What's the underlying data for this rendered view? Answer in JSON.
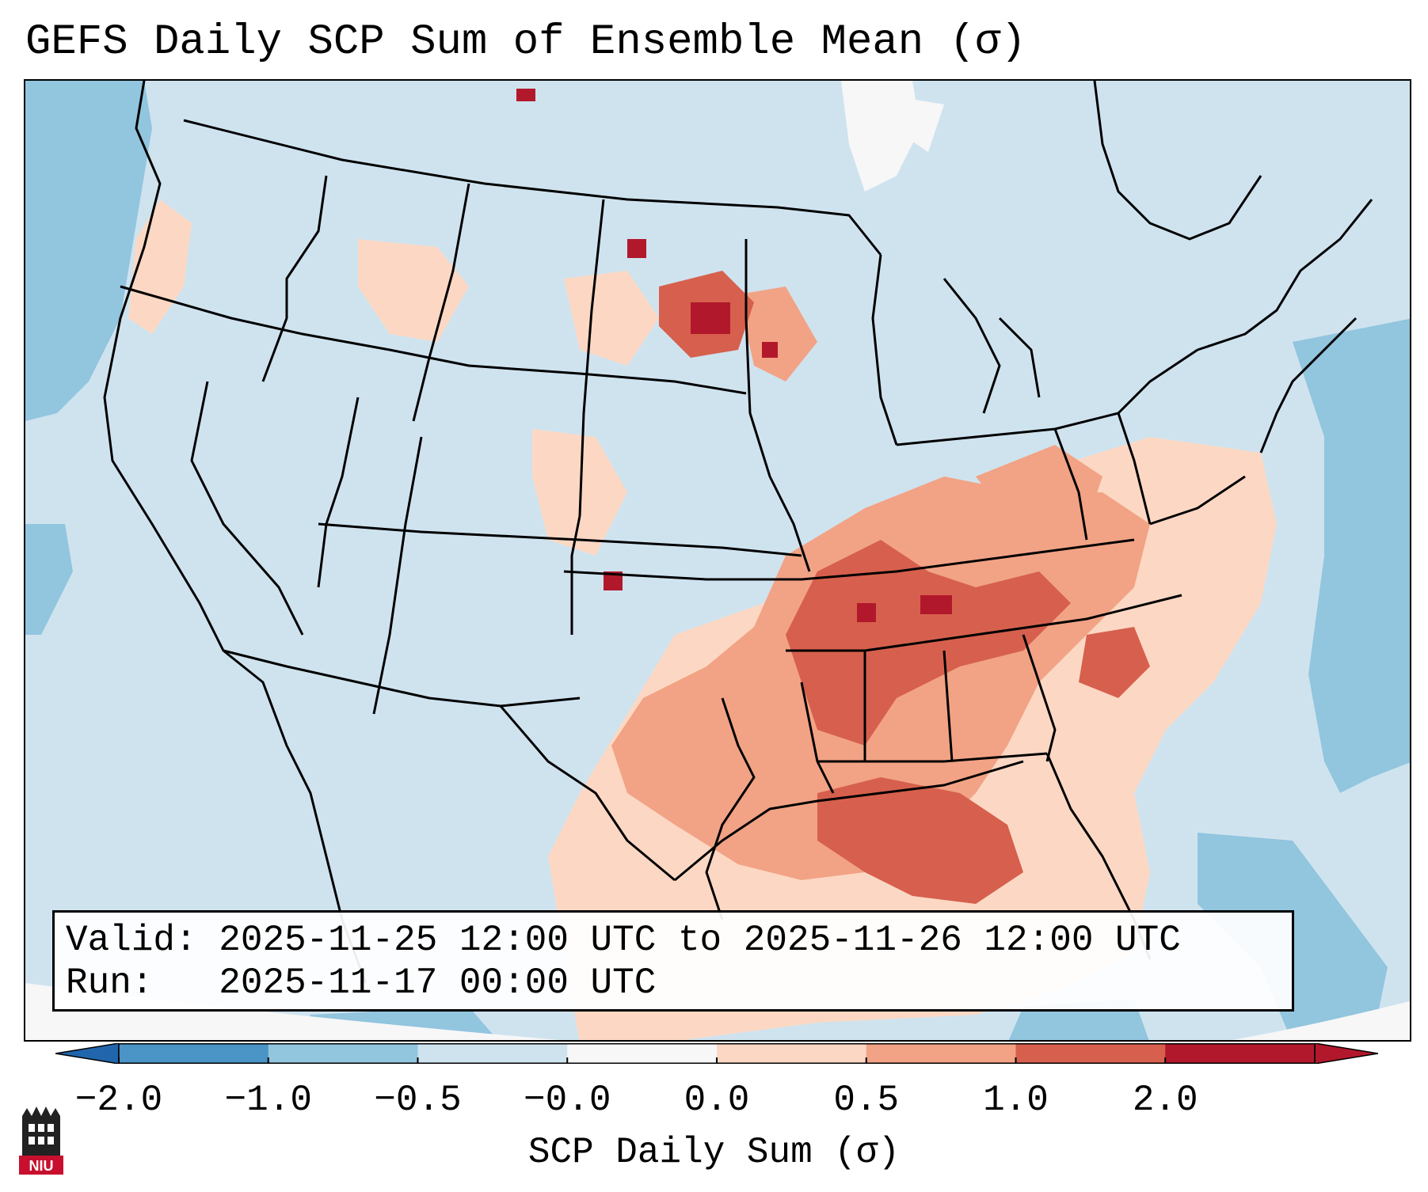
{
  "title": "GEFS Daily SCP Sum of Ensemble Mean (σ)",
  "map": {
    "region": "Continental United States",
    "field": "SCP daily sum, ensemble mean (standardized anomaly)",
    "highlight_area": "Mid-South to Gulf Coast",
    "ocean_color": "#cfe3ef"
  },
  "info": {
    "valid_label": "Valid:",
    "valid_value": "2025-11-25 12:00 UTC to 2025-11-26 12:00 UTC",
    "run_label": "Run:",
    "run_value": "2025-11-17 00:00 UTC"
  },
  "colorbar": {
    "label": "SCP Daily Sum (σ)",
    "ticks": [
      "−2.0",
      "−1.0",
      "−0.5",
      "−0.0",
      "0.0",
      "0.5",
      "1.0",
      "2.0"
    ],
    "colors": [
      "#4a94c6",
      "#92c5de",
      "#cfe3ef",
      "#f7f7f7",
      "#fcd8c4",
      "#f2a385",
      "#d6604d",
      "#b2182b"
    ],
    "under_color": "#2166ac",
    "over_color": "#b2182b"
  },
  "logo": {
    "text": "NIU",
    "color": "#c8102e"
  }
}
